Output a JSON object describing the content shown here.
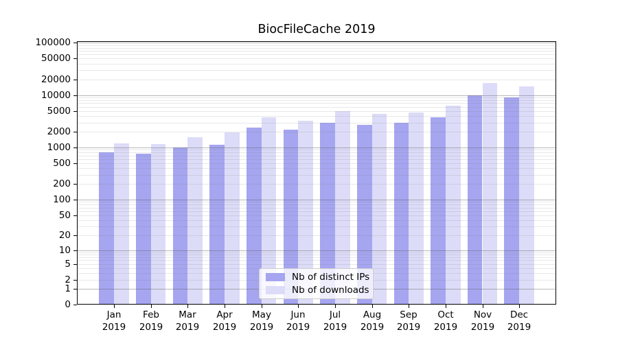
{
  "title": "BiocFileCache 2019",
  "legend": {
    "items": [
      {
        "label": "Nb of distinct IPs",
        "color": "#a5a5f0"
      },
      {
        "label": "Nb of downloads",
        "color": "#dcdcf8"
      }
    ]
  },
  "chart_data": {
    "type": "bar",
    "title": "BiocFileCache 2019",
    "categories": [
      "Jan",
      "Feb",
      "Mar",
      "Apr",
      "May",
      "Jun",
      "Jul",
      "Aug",
      "Sep",
      "Oct",
      "Nov",
      "Dec"
    ],
    "x_tick_second_line": "2019",
    "series": [
      {
        "name": "Nb of distinct IPs",
        "color": "#a5a5f0",
        "values": [
          810,
          770,
          1000,
          1140,
          2420,
          2190,
          2930,
          2730,
          2930,
          3770,
          9860,
          9160
        ]
      },
      {
        "name": "Nb of downloads",
        "color": "#dcdcf8",
        "values": [
          1210,
          1180,
          1580,
          1930,
          3780,
          3200,
          5000,
          4430,
          4660,
          6240,
          17100,
          14700
        ]
      }
    ],
    "y_scale": "log10(value+1)",
    "y_ticks": [
      0,
      1,
      2,
      5,
      10,
      20,
      50,
      100,
      200,
      500,
      1000,
      2000,
      5000,
      10000,
      20000,
      50000,
      100000
    ],
    "ylim": [
      0,
      107000
    ],
    "xlabel": "",
    "ylabel": "",
    "grid": true,
    "legend_position": "lower center"
  }
}
